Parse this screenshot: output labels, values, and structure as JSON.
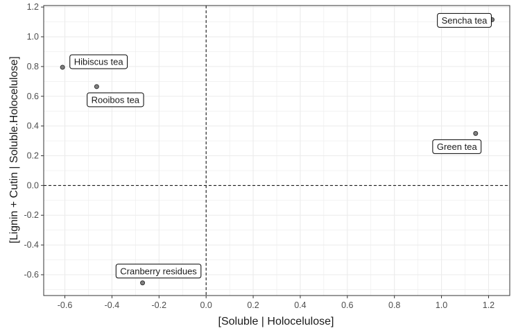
{
  "chart_data": {
    "type": "scatter",
    "xlabel": "[Soluble | Holocelulose]",
    "ylabel": "[Lignin + Cutin | Soluble.Holocelulose]",
    "xlim": [
      -0.69,
      1.29
    ],
    "ylim": [
      -0.74,
      1.21
    ],
    "xticks": [
      -0.6,
      -0.4,
      -0.2,
      0.0,
      0.2,
      0.4,
      0.6,
      0.8,
      1.0,
      1.2
    ],
    "xtick_labels": [
      "-0.6",
      "-0.4",
      "-0.2",
      "0.0",
      "0.2",
      "0.4",
      "0.6",
      "0.8",
      "1.0",
      "1.2"
    ],
    "yticks": [
      -0.6,
      -0.4,
      -0.2,
      0.0,
      0.2,
      0.4,
      0.6,
      0.8,
      1.0,
      1.2
    ],
    "ytick_labels": [
      "-0.6",
      "-0.4",
      "-0.2",
      "0.0",
      "0.2",
      "0.4",
      "0.6",
      "0.8",
      "1.0",
      "1.2"
    ],
    "grid": true,
    "reference_lines": {
      "x": 0,
      "y": 0,
      "style": "dashed"
    },
    "points": [
      {
        "label": "Hibiscus tea",
        "x": -0.61,
        "y": 0.795
      },
      {
        "label": "Rooibos tea",
        "x": -0.465,
        "y": 0.665
      },
      {
        "label": "Sencha tea",
        "x": 1.215,
        "y": 1.115
      },
      {
        "label": "Green tea",
        "x": 1.145,
        "y": 0.35
      },
      {
        "label": "Cranberry residues",
        "x": -0.27,
        "y": -0.655
      }
    ],
    "colors": {
      "point_fill": "#808080",
      "point_stroke": "#333333",
      "grid": "#ebebeb",
      "panel_border": "#333333"
    }
  }
}
